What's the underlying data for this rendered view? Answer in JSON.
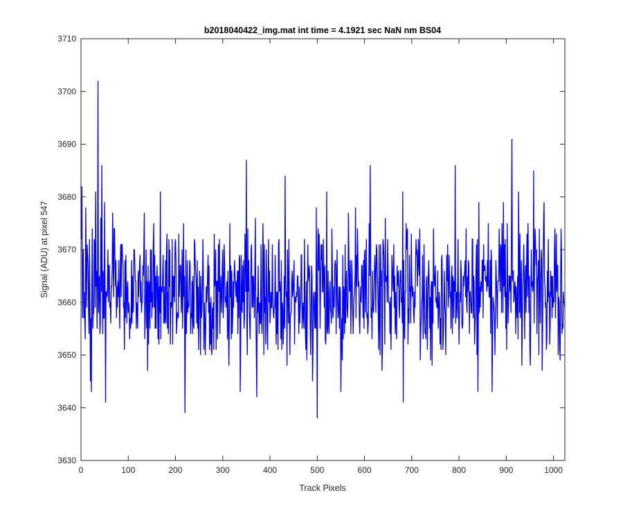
{
  "chart_data": {
    "type": "line",
    "title": "b2018040422_img.mat int time = 4.1921 sec  NaN nm BS04",
    "xlabel": "Track Pixels",
    "ylabel": "Signal (ADU) at pixel 547",
    "xlim": [
      0,
      1024
    ],
    "ylim": [
      3630,
      3710
    ],
    "xticks": [
      "0",
      "100",
      "200",
      "300",
      "400",
      "500",
      "600",
      "700",
      "800",
      "900",
      "1000"
    ],
    "yticks": [
      "3630",
      "3640",
      "3650",
      "3660",
      "3670",
      "3680",
      "3690",
      "3700",
      "3710"
    ],
    "grid": false,
    "legend": "none",
    "colors": {
      "series": "#0000ff",
      "axes": "#262626"
    },
    "series": [
      {
        "n_points": 1024,
        "mean": 3662,
        "noise_sd": 6.5,
        "x_start": 1,
        "min": 3638,
        "max": 3702,
        "peaks": [
          [
            2,
            3682
          ],
          [
            10,
            3678
          ],
          [
            20,
            3645
          ],
          [
            22,
            3643
          ],
          [
            36,
            3702
          ],
          [
            44,
            3686
          ],
          [
            52,
            3641
          ],
          [
            50,
            3679
          ],
          [
            168,
            3681
          ],
          [
            220,
            3639
          ],
          [
            350,
            3687
          ],
          [
            372,
            3642
          ],
          [
            432,
            3684
          ],
          [
            500,
            3638
          ],
          [
            550,
            3643
          ],
          [
            612,
            3686
          ],
          [
            682,
            3641
          ],
          [
            720,
            3657
          ],
          [
            792,
            3686
          ],
          [
            840,
            3643
          ],
          [
            870,
            3643
          ],
          [
            912,
            3691
          ],
          [
            926,
            3681
          ],
          [
            958,
            3685
          ],
          [
            1010,
            3650
          ]
        ]
      }
    ]
  }
}
